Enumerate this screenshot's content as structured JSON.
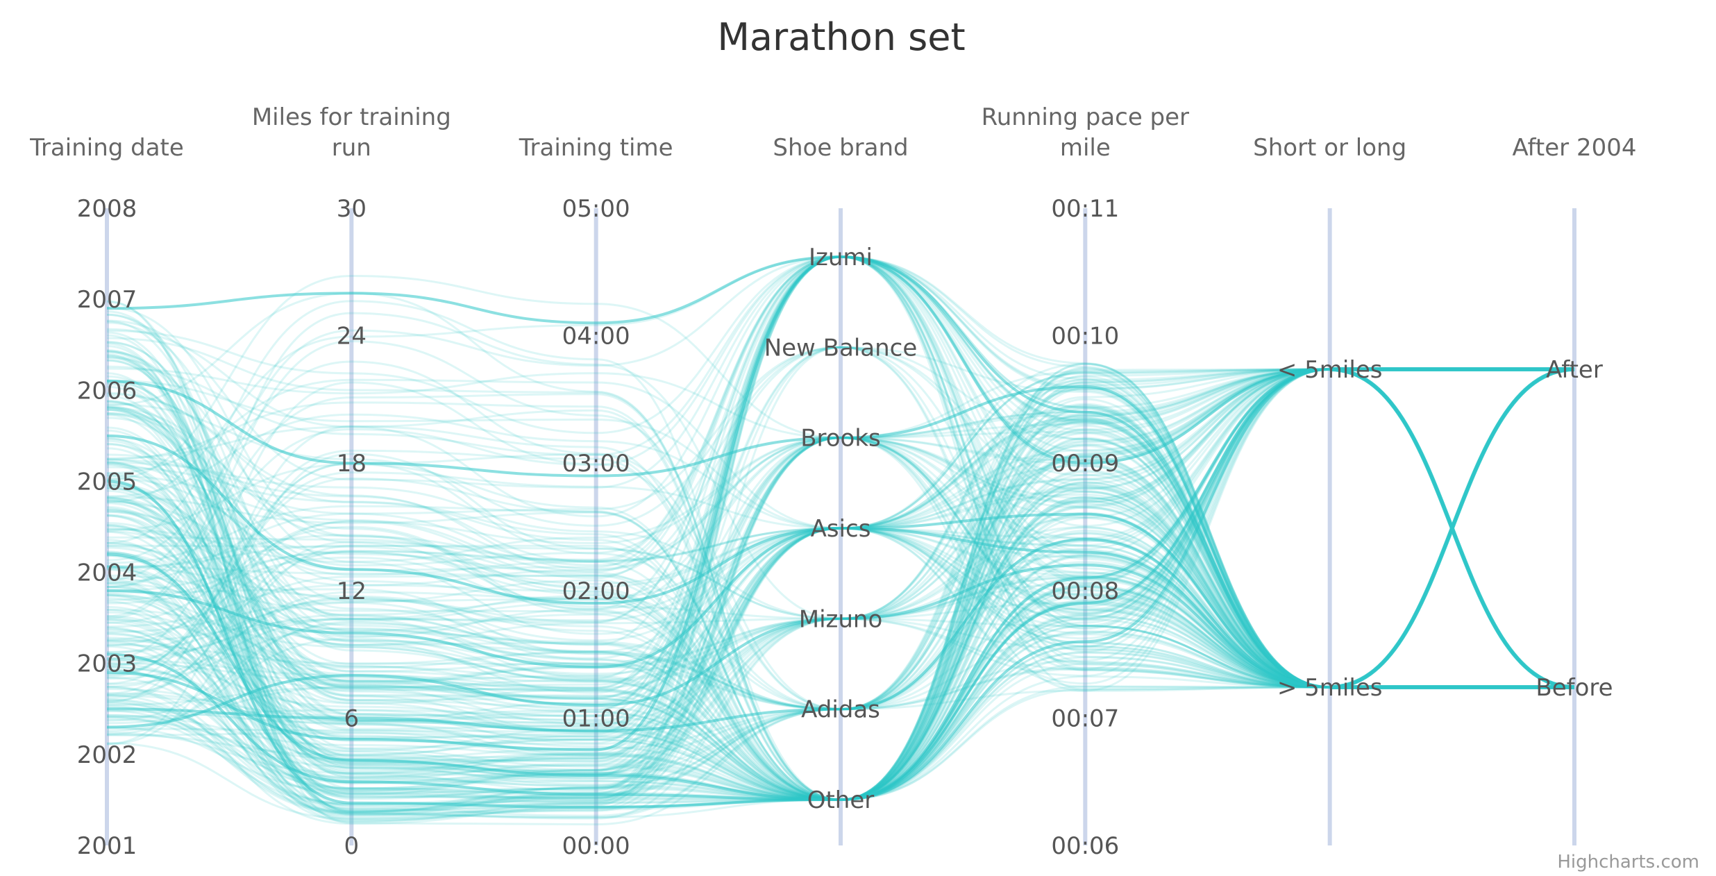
{
  "credits": "Highcharts.com",
  "colors": {
    "line": "#2ec6c8",
    "axis": "#ccd6eb",
    "title": "#333333",
    "axis_title": "#666666",
    "tick": "#555555",
    "credit": "#999999"
  },
  "chart_data": {
    "type": "line",
    "subtype": "parallel-coordinates",
    "title": "Marathon set",
    "axes": [
      {
        "key": "date",
        "title_lines": [
          "Training date"
        ],
        "min": 2001,
        "max": 2008,
        "ticks": [
          "2001",
          "2002",
          "2003",
          "2004",
          "2005",
          "2006",
          "2007",
          "2008"
        ]
      },
      {
        "key": "miles",
        "title_lines": [
          "Miles for training",
          "run"
        ],
        "min": 0,
        "max": 30,
        "ticks": [
          "0",
          "6",
          "12",
          "18",
          "24",
          "30"
        ]
      },
      {
        "key": "time",
        "title_lines": [
          "Training time"
        ],
        "min": 0,
        "max": 5,
        "ticks": [
          "00:00",
          "01:00",
          "02:00",
          "03:00",
          "04:00",
          "05:00"
        ]
      },
      {
        "key": "shoe",
        "title_lines": [
          "Shoe brand"
        ],
        "categorical": true,
        "min": 0,
        "max": 7,
        "ticks": [
          "Other",
          "Adidas",
          "Mizuno",
          "Asics",
          "Brooks",
          "New Balance",
          "Izumi"
        ]
      },
      {
        "key": "pace",
        "title_lines": [
          "Running pace per",
          "mile"
        ],
        "min": 6,
        "max": 11,
        "ticks": [
          "00:06",
          "00:07",
          "00:08",
          "00:09",
          "00:10",
          "00:11"
        ]
      },
      {
        "key": "distance",
        "title_lines": [
          "Short or long"
        ],
        "categorical": true,
        "min": 0,
        "max": 2,
        "ticks": [
          "> 5miles",
          "< 5miles"
        ]
      },
      {
        "key": "after",
        "title_lines": [
          "After 2004"
        ],
        "categorical": true,
        "min": 0,
        "max": 2,
        "ticks": [
          "Before",
          "After"
        ]
      }
    ],
    "sample_series": [
      {
        "date": 2006.9,
        "miles": 26,
        "time": 4.1,
        "shoe": "Izumi",
        "pace": 9.4,
        "distance": "> 5miles",
        "after": "After"
      },
      {
        "date": 2005.5,
        "miles": 13,
        "time": 1.9,
        "shoe": "Asics",
        "pace": 8.6,
        "distance": "> 5miles",
        "after": "After"
      },
      {
        "date": 2004.2,
        "miles": 4,
        "time": 0.55,
        "shoe": "Other",
        "pace": 8.1,
        "distance": "< 5miles",
        "after": "After"
      },
      {
        "date": 2003.1,
        "miles": 3,
        "time": 0.4,
        "shoe": "Other",
        "pace": 7.9,
        "distance": "< 5miles",
        "after": "Before"
      },
      {
        "date": 2002.3,
        "miles": 8,
        "time": 1.1,
        "shoe": "Mizuno",
        "pace": 8.2,
        "distance": "> 5miles",
        "after": "Before"
      },
      {
        "date": 2002.5,
        "miles": 6,
        "time": 0.9,
        "shoe": "Adidas",
        "pace": 8.4,
        "distance": "> 5miles",
        "after": "Before"
      },
      {
        "date": 2006.1,
        "miles": 18,
        "time": 2.9,
        "shoe": "Brooks",
        "pace": 9.6,
        "distance": "> 5miles",
        "after": "After"
      },
      {
        "date": 2003.8,
        "miles": 10,
        "time": 1.4,
        "shoe": "Asics",
        "pace": 8.3,
        "distance": "> 5miles",
        "after": "Before"
      },
      {
        "date": 2005.0,
        "miles": 2,
        "time": 0.3,
        "shoe": "Other",
        "pace": 7.6,
        "distance": "< 5miles",
        "after": "After"
      },
      {
        "date": 2002.9,
        "miles": 5,
        "time": 0.75,
        "shoe": "Izumi",
        "pace": 9.0,
        "distance": "< 5miles",
        "after": "Before"
      }
    ]
  }
}
